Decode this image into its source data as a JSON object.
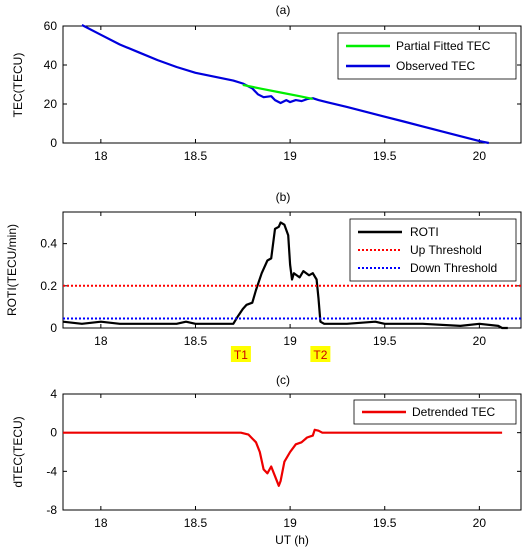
{
  "chart_data": [
    {
      "type": "line",
      "title": "(a)",
      "xlabel": "",
      "ylabel": "TEC(TECU)",
      "xlim": [
        17.8,
        20.22
      ],
      "ylim": [
        0,
        60
      ],
      "xticks": [
        "18",
        "18.5",
        "19",
        "19.5",
        "20"
      ],
      "yticks": [
        "0",
        "20",
        "40",
        "60"
      ],
      "grid": false,
      "legend_position": "top-right",
      "series": [
        {
          "name": "Partial Fitted TEC",
          "color": "#00ee00",
          "x": [
            18.75,
            18.85,
            18.95,
            19.05,
            19.12
          ],
          "y": [
            29.8,
            27.8,
            25.9,
            24.0,
            22.6
          ]
        },
        {
          "name": "Observed TEC",
          "color": "#0000dd",
          "x": [
            17.9,
            18.0,
            18.1,
            18.2,
            18.3,
            18.4,
            18.5,
            18.6,
            18.7,
            18.75,
            18.8,
            18.83,
            18.86,
            18.9,
            18.92,
            18.95,
            18.98,
            19.0,
            19.03,
            19.06,
            19.09,
            19.12,
            19.15,
            19.2,
            19.3,
            19.4,
            19.5,
            19.6,
            19.7,
            19.8,
            19.9,
            20.0,
            20.05
          ],
          "y": [
            60.5,
            55.5,
            50.5,
            46.5,
            42.5,
            39.0,
            36.0,
            34.0,
            32.0,
            30.5,
            28.0,
            25.0,
            23.5,
            24.0,
            22.0,
            20.5,
            22.0,
            21.0,
            22.0,
            21.5,
            22.5,
            23.0,
            22.0,
            20.8,
            18.5,
            16.0,
            13.5,
            11.0,
            8.5,
            6.0,
            3.5,
            1.0,
            0.0
          ]
        }
      ]
    },
    {
      "type": "line",
      "title": "(b)",
      "xlabel": "",
      "ylabel": "ROTI(TECU/min)",
      "xlim": [
        17.8,
        20.22
      ],
      "ylim": [
        0,
        0.55
      ],
      "xticks": [
        "18",
        "18.5",
        "19",
        "19.5",
        "20"
      ],
      "yticks": [
        "0",
        "0.2",
        "0.4"
      ],
      "grid": false,
      "legend_position": "top-right",
      "annotations": [
        {
          "text": "T1",
          "x": 18.74
        },
        {
          "text": "T2",
          "x": 19.16
        }
      ],
      "series": [
        {
          "name": "ROTI",
          "color": "#000000",
          "x": [
            17.8,
            17.9,
            18.0,
            18.1,
            18.2,
            18.3,
            18.4,
            18.45,
            18.5,
            18.6,
            18.7,
            18.72,
            18.75,
            18.77,
            18.8,
            18.82,
            18.85,
            18.88,
            18.9,
            18.92,
            18.94,
            18.95,
            18.97,
            18.99,
            19.0,
            19.01,
            19.02,
            19.05,
            19.07,
            19.1,
            19.12,
            19.14,
            19.15,
            19.16,
            19.18,
            19.3,
            19.45,
            19.5,
            19.7,
            19.9,
            20.0,
            20.1,
            20.12,
            20.15
          ],
          "y": [
            0.03,
            0.02,
            0.03,
            0.02,
            0.02,
            0.02,
            0.02,
            0.03,
            0.02,
            0.02,
            0.02,
            0.05,
            0.09,
            0.11,
            0.12,
            0.18,
            0.26,
            0.32,
            0.33,
            0.47,
            0.48,
            0.5,
            0.49,
            0.44,
            0.3,
            0.23,
            0.26,
            0.24,
            0.27,
            0.25,
            0.26,
            0.23,
            0.14,
            0.03,
            0.02,
            0.02,
            0.03,
            0.02,
            0.02,
            0.01,
            0.02,
            0.01,
            0.0,
            0.0
          ]
        },
        {
          "name": "Up Threshold",
          "color": "#ff0000",
          "x": [
            17.8,
            20.22
          ],
          "y": [
            0.2,
            0.2
          ]
        },
        {
          "name": "Down Threshold",
          "color": "#0000ff",
          "x": [
            17.8,
            20.22
          ],
          "y": [
            0.045,
            0.045
          ]
        }
      ]
    },
    {
      "type": "line",
      "title": "(c)",
      "xlabel": "UT (h)",
      "ylabel": "dTEC(TECU)",
      "xlim": [
        17.8,
        20.22
      ],
      "ylim": [
        -8,
        4
      ],
      "xticks": [
        "18",
        "18.5",
        "19",
        "19.5",
        "20"
      ],
      "yticks": [
        "-8",
        "-4",
        "0",
        "4"
      ],
      "grid": false,
      "legend_position": "top-right",
      "series": [
        {
          "name": "Detrended TEC",
          "color": "#ee0000",
          "x": [
            17.8,
            18.0,
            18.5,
            18.74,
            18.78,
            18.82,
            18.84,
            18.86,
            18.88,
            18.9,
            18.92,
            18.94,
            18.95,
            18.97,
            19.0,
            19.03,
            19.06,
            19.09,
            19.12,
            19.13,
            19.15,
            19.17,
            19.2,
            19.5,
            20.0,
            20.12
          ],
          "y": [
            0.0,
            0.0,
            0.0,
            0.0,
            -0.2,
            -1.0,
            -2.0,
            -3.8,
            -4.2,
            -3.5,
            -4.5,
            -5.5,
            -5.0,
            -3.0,
            -2.0,
            -1.2,
            -1.0,
            -0.5,
            -0.3,
            0.3,
            0.2,
            0.0,
            0.0,
            0.0,
            0.0,
            0.0
          ]
        }
      ]
    }
  ]
}
